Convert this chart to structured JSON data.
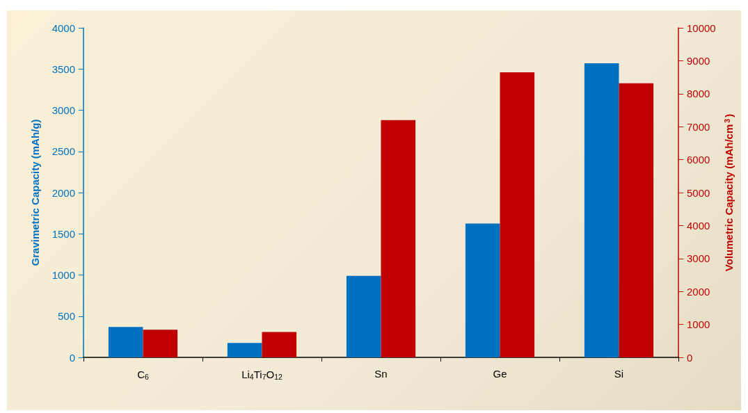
{
  "chart_data": {
    "type": "bar",
    "ylabel": "Gravimetric Capacity (mAh/g)",
    "y2label": "Volumetric Capacity (mAh/cm$^{3}$)",
    "categories": [
      "C$_{6}$",
      "Li$_{4}$Ti$_{7}$O$_{12}$",
      "Sn",
      "Ge",
      "Si"
    ],
    "series": [
      {
        "color": "#0070c0",
        "values": [
          370,
          175,
          990,
          1625,
          3570
        ]
      },
      {
        "color": "#c00000",
        "axis": "y2",
        "values": [
          840,
          770,
          7200,
          8650,
          8320
        ]
      }
    ],
    "ylim": [
      0,
      4000
    ],
    "yticks": [
      0,
      500,
      1000,
      1500,
      2000,
      2500,
      3000,
      3500,
      4000
    ],
    "y2lim": [
      0,
      10000
    ],
    "y2ticks": [
      0,
      1000,
      2000,
      3000,
      4000,
      5000,
      6000,
      7000,
      8000,
      9000,
      10000
    ],
    "grid": false
  }
}
